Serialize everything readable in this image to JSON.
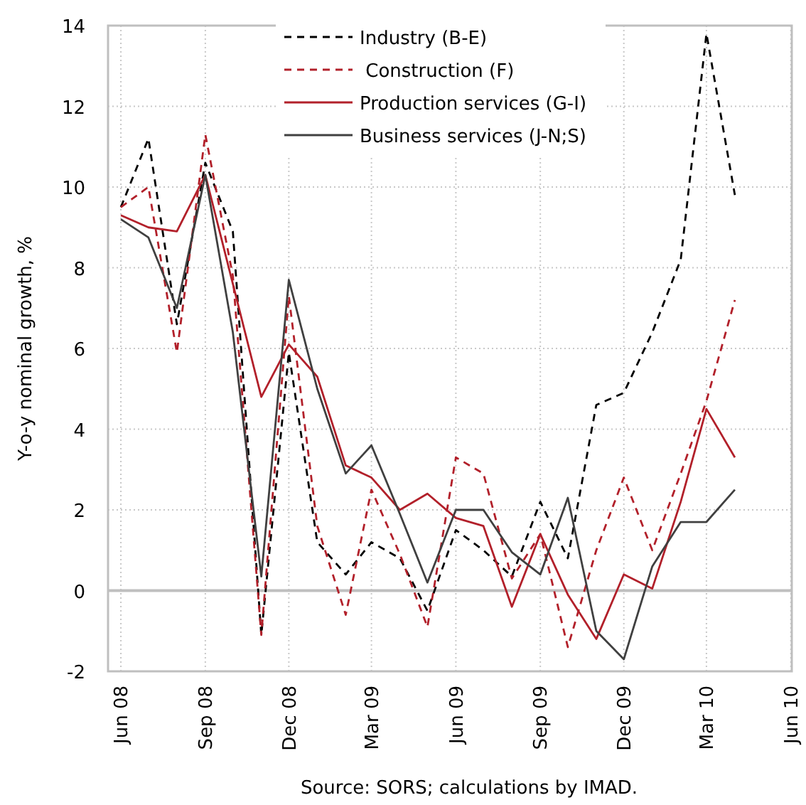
{
  "chart_data": {
    "type": "line",
    "ylabel": "Y-o-y nominal growth, %",
    "x": [
      "2008-06-15",
      "2008-07-15",
      "2008-08-15",
      "2008-09-15",
      "2008-10-15",
      "2008-11-15",
      "2008-12-15",
      "2009-01-15",
      "2009-02-15",
      "2009-03-15",
      "2009-04-15",
      "2009-05-15",
      "2009-06-15",
      "2009-07-15",
      "2009-08-15",
      "2009-09-15",
      "2009-10-15",
      "2009-11-15",
      "2009-12-15",
      "2010-01-15",
      "2010-02-15",
      "2010-03-15",
      "2010-04-15"
    ],
    "xlim": [
      "2008-06-01",
      "2010-06-16"
    ],
    "xticks": [
      {
        "value": "2008-06-15",
        "label": "Jun 08"
      },
      {
        "value": "2008-09-15",
        "label": "Sep 08"
      },
      {
        "value": "2008-12-15",
        "label": "Dec 08"
      },
      {
        "value": "2009-03-15",
        "label": "Mar 09"
      },
      {
        "value": "2009-06-15",
        "label": "Jun 09"
      },
      {
        "value": "2009-09-15",
        "label": "Sep 09"
      },
      {
        "value": "2009-12-15",
        "label": "Dec 09"
      },
      {
        "value": "2010-03-15",
        "label": "Mar 10"
      },
      {
        "value": "2010-06-15",
        "label": "Jun 10"
      }
    ],
    "ylim": [
      -2,
      14
    ],
    "yticks": [
      -2,
      0,
      2,
      4,
      6,
      8,
      10,
      12,
      14
    ],
    "grid": true,
    "legend": "top",
    "series": [
      {
        "name": "Industry (B-E)",
        "color": "#000000",
        "line_style": "dashed",
        "values": [
          9.5,
          11.2,
          6.6,
          10.6,
          8.9,
          -1.1,
          5.9,
          1.2,
          0.4,
          1.2,
          0.8,
          -0.5,
          1.5,
          1.0,
          0.35,
          2.2,
          0.8,
          4.6,
          4.9,
          6.4,
          8.2,
          13.8,
          9.8
        ]
      },
      {
        "name": " Construction (F)",
        "color": "#b2202a",
        "line_style": "dashed",
        "values": [
          9.5,
          10.0,
          5.9,
          11.3,
          7.8,
          -1.1,
          7.3,
          1.6,
          -0.6,
          2.5,
          0.9,
          -0.9,
          3.3,
          2.9,
          0.3,
          1.4,
          -1.4,
          1.0,
          2.8,
          1.0,
          2.9,
          4.7,
          7.2
        ]
      },
      {
        "name": "Production services (G-I)",
        "color": "#b2202a",
        "line_style": "solid",
        "values": [
          9.3,
          9.0,
          8.9,
          10.3,
          7.6,
          4.8,
          6.1,
          5.3,
          3.1,
          2.8,
          2.0,
          2.4,
          1.8,
          1.6,
          -0.4,
          1.4,
          -0.1,
          -1.2,
          0.4,
          0.05,
          2.2,
          4.5,
          3.3
        ]
      },
      {
        "name": "Business services (J-N;S)",
        "color": "#404040",
        "line_style": "solid",
        "values": [
          9.2,
          8.75,
          7.0,
          10.3,
          6.4,
          0.35,
          7.7,
          5.0,
          2.9,
          3.6,
          1.9,
          0.2,
          2.0,
          2.0,
          0.95,
          0.4,
          2.3,
          -1.0,
          -1.7,
          0.6,
          1.7,
          1.7,
          2.5
        ]
      }
    ],
    "ref_lines": [
      {
        "axis": "y",
        "value": 0,
        "color": "#bfbfbf"
      }
    ],
    "annotations": [
      "Source: SORS; calculations by IMAD."
    ]
  }
}
